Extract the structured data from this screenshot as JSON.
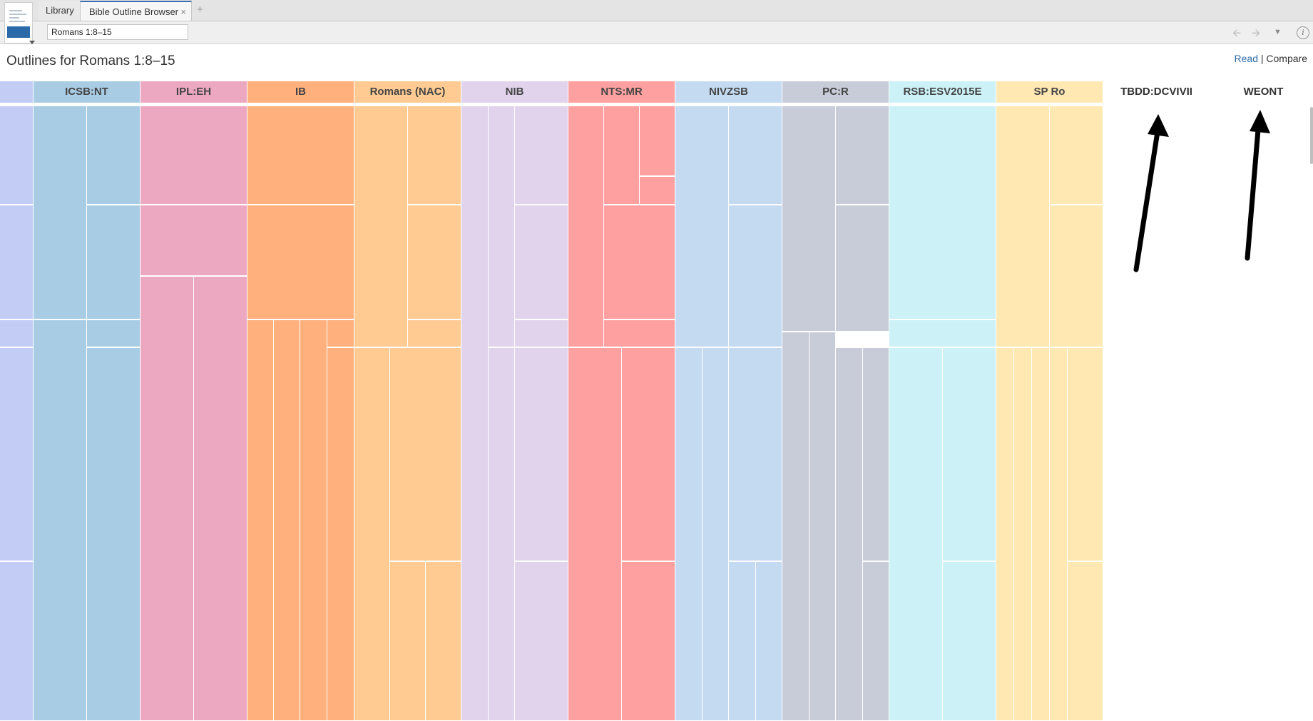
{
  "tabs": {
    "library": "Library",
    "active": "Bible Outline Browser",
    "close": "×",
    "add": "+"
  },
  "toolbar": {
    "reference": "Romans 1:8–15",
    "back_icon": "arrow-left-icon",
    "forward_icon": "arrow-right-icon",
    "menu_icon": "chevron-down-icon",
    "info_icon": "info-icon",
    "info_glyph": "i"
  },
  "page": {
    "title": "Outlines for Romans 1:8–15",
    "read": "Read",
    "separator": "|",
    "compare": "Compare"
  },
  "columns": [
    {
      "label": "",
      "color": "#c3ccf5"
    },
    {
      "label": "ICSB:NT",
      "color": "#a8cce4"
    },
    {
      "label": "IPL:EH",
      "color": "#eca8c0"
    },
    {
      "label": "IB",
      "color": "#ffb07d"
    },
    {
      "label": "Romans (NAC)",
      "color": "#ffcb93"
    },
    {
      "label": "NIB",
      "color": "#e1d3ec"
    },
    {
      "label": "NTS:MR",
      "color": "#ffa0a0"
    },
    {
      "label": "NIVZSB",
      "color": "#c4daf1"
    },
    {
      "label": "PC:R",
      "color": "#c8ccd8"
    },
    {
      "label": "RSB:ESV2015E",
      "color": "#ccf1f6"
    },
    {
      "label": "SP Ro",
      "color": "#ffe8b2"
    },
    {
      "label": "TBDD:DCVIVII",
      "color": "#ffffff"
    },
    {
      "label": "WEONT",
      "color": "#ffffff"
    }
  ]
}
